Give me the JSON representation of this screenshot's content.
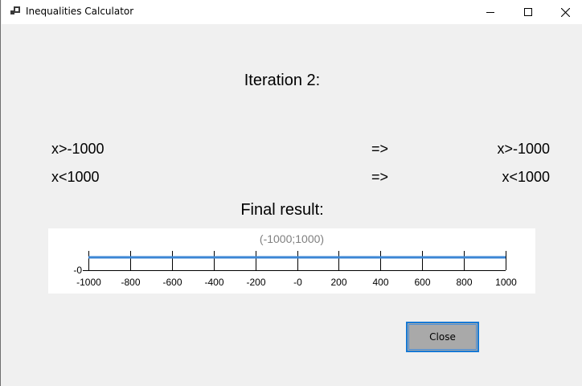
{
  "window": {
    "title": "Inequalities Calculator",
    "icon": "app-window-icon",
    "controls": [
      "minimize-icon",
      "maximize-icon",
      "close-icon"
    ]
  },
  "iteration_title": "Iteration 2:",
  "conditions": [
    {
      "input": "x>-1000",
      "arrow": "=>",
      "output": "x>-1000"
    },
    {
      "input": "x<1000",
      "arrow": "=>",
      "output": "x<1000"
    }
  ],
  "final_label": "Final result:",
  "chart_data": {
    "type": "line",
    "title": "(-1000;1000)",
    "x_ticks": [
      -1000,
      -800,
      -600,
      -400,
      -200,
      0,
      200,
      400,
      600,
      800,
      1000
    ],
    "x_tick_labels": [
      "-1000",
      "-800",
      "-600",
      "-400",
      "-200",
      "-0",
      "200",
      "400",
      "600",
      "800",
      "1000"
    ],
    "y_tick_labels": [
      "-0"
    ],
    "xlim": [
      -1000,
      1000
    ],
    "series": [
      {
        "x": [
          -1000,
          1000
        ],
        "y": [
          0,
          0
        ],
        "color": "#3b86d4"
      }
    ],
    "grid": false
  },
  "buttons": {
    "close_label": "Close"
  },
  "colors": {
    "accent": "#1779d4",
    "series": "#3b86d4",
    "title_gray": "#808080"
  }
}
